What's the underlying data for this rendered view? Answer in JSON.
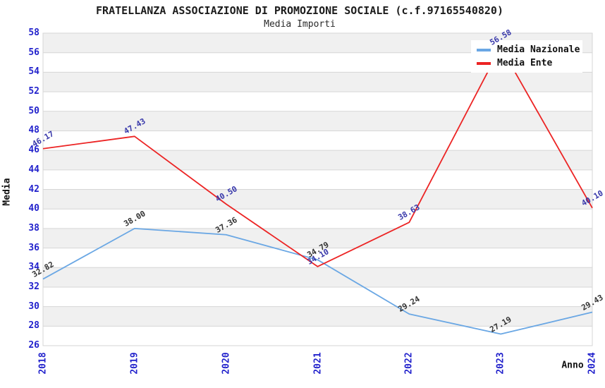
{
  "colors": {
    "background": "#ffffff",
    "band_fill": "#f0f0f0",
    "grid_line": "#d6d6d6",
    "axis_tick": "#2222cc",
    "title_text": "#1c1c1c",
    "nazionale_line": "#6aa7e4",
    "ente_line": "#ec2424",
    "nazionale_label": "#333333",
    "ente_label": "#3838aa"
  },
  "chart_data": {
    "type": "line",
    "title": "FRATELLANZA ASSOCIAZIONE DI PROMOZIONE SOCIALE (c.f.97165540820)",
    "subtitle": "Media Importi",
    "xlabel": "Anno",
    "ylabel": "Media",
    "x": [
      "2018",
      "2019",
      "2020",
      "2021",
      "2022",
      "2023",
      "2024"
    ],
    "ylim": [
      26,
      58
    ],
    "ytick_step": 2,
    "grid": "horizontal-alternating-bands",
    "legend_position": "top-right-inside",
    "series": [
      {
        "name": "Media Nazionale",
        "color": "#6aa7e4",
        "label_color": "#333333",
        "values": [
          32.82,
          38.0,
          37.36,
          34.79,
          29.24,
          27.19,
          29.43
        ],
        "labels": [
          "32.82",
          "38.00",
          "37.36",
          "34.79",
          "29.24",
          "27.19",
          "29.43"
        ]
      },
      {
        "name": "Media Ente",
        "color": "#ec2424",
        "label_color": "#3838aa",
        "values": [
          46.17,
          47.43,
          40.5,
          34.1,
          38.63,
          56.58,
          40.1
        ],
        "labels": [
          "46.17",
          "47.43",
          "40.50",
          "34.10",
          "38.63",
          "56.58",
          "40.10"
        ]
      }
    ]
  }
}
